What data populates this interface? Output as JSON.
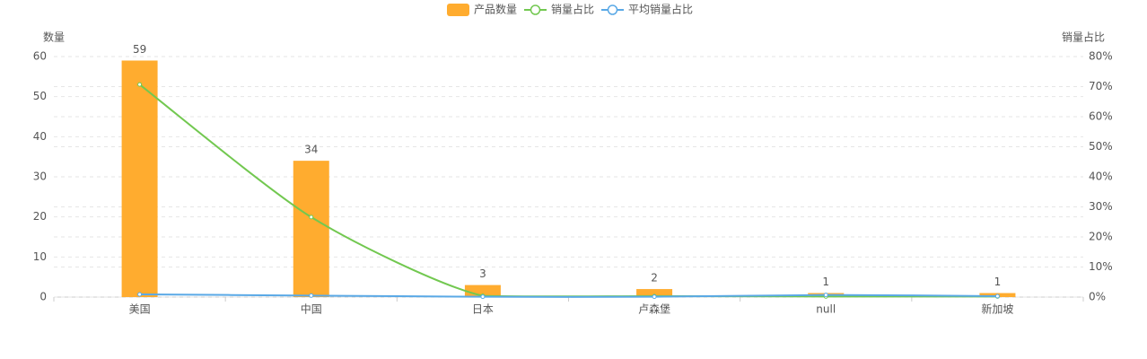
{
  "chart_data": {
    "type": "bar-line",
    "legend_position": "top",
    "y_axis_name": "数量",
    "y2_axis_name": "销量占比",
    "categories": [
      "美国",
      "中国",
      "日本",
      "卢森堡",
      "null",
      "新加坡"
    ],
    "series": [
      {
        "name": "产品数量",
        "type": "bar",
        "color": "#ffac2f",
        "values": [
          59,
          34,
          3,
          2,
          1,
          1
        ]
      },
      {
        "name": "销量占比",
        "type": "line",
        "axis": "y2",
        "color": "#72c850",
        "values": [
          70.7,
          26.6,
          0.4,
          0.3,
          0.2,
          0.2
        ]
      },
      {
        "name": "平均销量占比",
        "type": "line",
        "axis": "y2",
        "color": "#5aa9e6",
        "values": [
          0.9,
          0.5,
          0.1,
          0.1,
          0.7,
          0.3
        ]
      }
    ],
    "ylim": [
      0,
      60
    ],
    "yticks": [
      0,
      10,
      20,
      30,
      40,
      50,
      60
    ],
    "y2lim": [
      0,
      80
    ],
    "y2ticks": [
      {
        "value": 0,
        "label": "0%"
      },
      {
        "value": 10,
        "label": "10%"
      },
      {
        "value": 20,
        "label": "20%"
      },
      {
        "value": 30,
        "label": "30%"
      },
      {
        "value": 40,
        "label": "40%"
      },
      {
        "value": 50,
        "label": "50%"
      },
      {
        "value": 60,
        "label": "60%"
      },
      {
        "value": 70,
        "label": "70%"
      },
      {
        "value": 80,
        "label": "80%"
      }
    ],
    "grid": true
  }
}
